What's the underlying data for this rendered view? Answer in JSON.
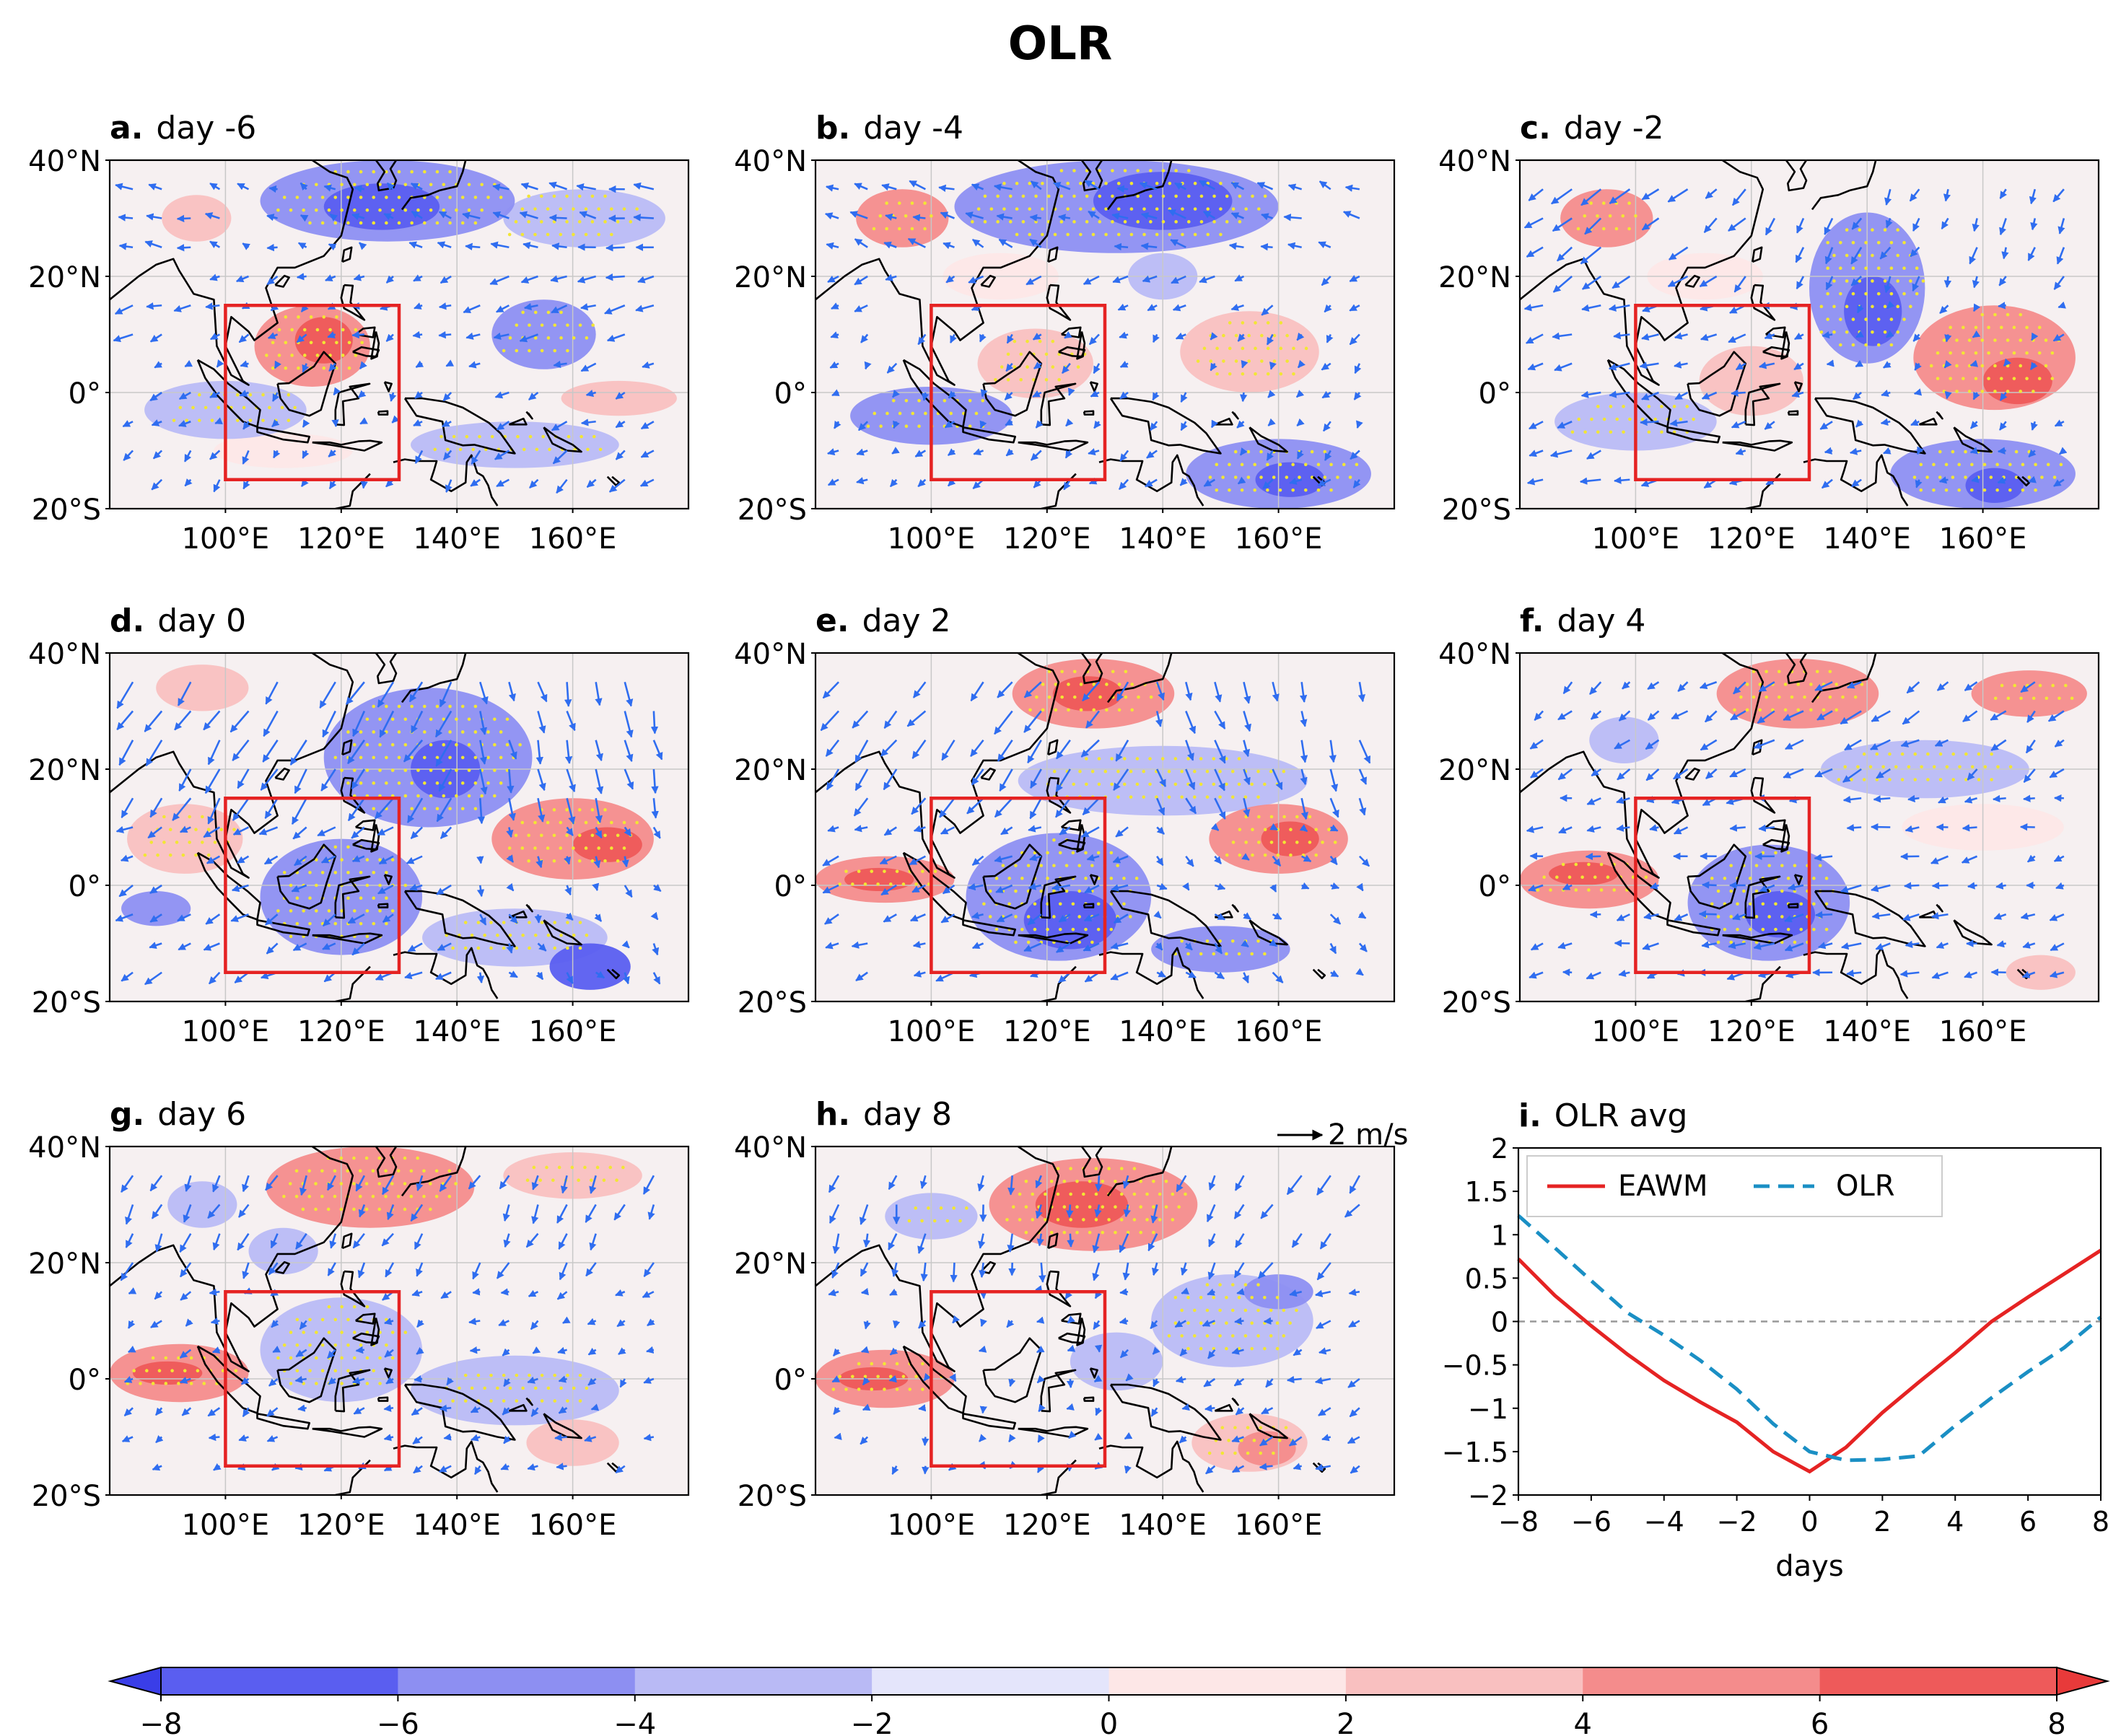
{
  "figure": {
    "title": "OLR",
    "lat_labels": [
      "40°N",
      "20°N",
      "0°",
      "20°S"
    ],
    "lon_labels": [
      "100°E",
      "120°E",
      "140°E",
      "160°E"
    ],
    "vector_key_label": "2 m/s",
    "colorbar": {
      "ticks": [
        "−8",
        "−6",
        "−4",
        "−2",
        "0",
        "2",
        "4",
        "6",
        "8"
      ],
      "colors": [
        "#5a5ef0",
        "#8d8ff2",
        "#b9baf5",
        "#e4e5fb",
        "#fde7e7",
        "#f9c0c0",
        "#f48c8c",
        "#ee5a5a"
      ]
    },
    "colors": {
      "box": "#e52323",
      "wind": "#2f6df0",
      "stipple": "#f2e634",
      "ocean": "#f6f0f1",
      "coast": "#000000"
    }
  },
  "panels": [
    {
      "letter": "a.",
      "day": "day -6"
    },
    {
      "letter": "b.",
      "day": "day -4"
    },
    {
      "letter": "c.",
      "day": "day -2"
    },
    {
      "letter": "d.",
      "day": "day 0"
    },
    {
      "letter": "e.",
      "day": "day 2"
    },
    {
      "letter": "f.",
      "day": "day 4"
    },
    {
      "letter": "g.",
      "day": "day 6"
    },
    {
      "letter": "h.",
      "day": "day 8"
    }
  ],
  "panel_i": {
    "letter": "i.",
    "title": "OLR avg"
  },
  "chart_data": {
    "type": "line",
    "title": "OLR avg",
    "xlabel": "days",
    "ylabel": "",
    "xlim": [
      -8,
      8
    ],
    "ylim": [
      -2,
      2
    ],
    "xticks": [
      -8,
      -6,
      -4,
      -2,
      0,
      2,
      4,
      6,
      8
    ],
    "yticks": [
      2,
      1.5,
      1,
      0.5,
      0,
      -0.5,
      -1,
      -1.5,
      -2
    ],
    "x": [
      -8,
      -7,
      -6,
      -5,
      -4,
      -3,
      -2,
      -1,
      0,
      1,
      2,
      3,
      4,
      5,
      6,
      7,
      8
    ],
    "series": [
      {
        "name": "EAWM",
        "style": "solid",
        "color": "#e52323",
        "values": [
          0.72,
          0.3,
          -0.05,
          -0.38,
          -0.68,
          -0.93,
          -1.16,
          -1.5,
          -1.73,
          -1.45,
          -1.05,
          -0.7,
          -0.36,
          0.0,
          0.28,
          0.55,
          0.82
        ]
      },
      {
        "name": "OLR",
        "style": "dashed",
        "color": "#1a8fc4",
        "values": [
          1.22,
          0.85,
          0.47,
          0.1,
          -0.16,
          -0.45,
          -0.78,
          -1.18,
          -1.5,
          -1.6,
          -1.59,
          -1.55,
          -1.2,
          -0.88,
          -0.58,
          -0.3,
          0.05
        ]
      }
    ],
    "zero_line": true,
    "legend": "top"
  }
}
